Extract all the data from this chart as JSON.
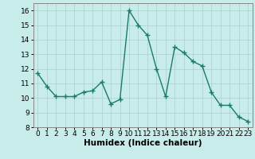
{
  "x": [
    0,
    1,
    2,
    3,
    4,
    5,
    6,
    7,
    8,
    9,
    10,
    11,
    12,
    13,
    14,
    15,
    16,
    17,
    18,
    19,
    20,
    21,
    22,
    23
  ],
  "y": [
    11.7,
    10.8,
    10.1,
    10.1,
    10.1,
    10.4,
    10.5,
    11.1,
    9.6,
    9.9,
    16.0,
    15.0,
    14.3,
    12.0,
    10.1,
    13.5,
    13.1,
    12.5,
    12.2,
    10.4,
    9.5,
    9.5,
    8.7,
    8.4
  ],
  "line_color": "#1a7a6e",
  "marker": "+",
  "marker_size": 4,
  "marker_lw": 1.0,
  "bg_color": "#c8ecea",
  "grid_color": "#aed4d0",
  "xlabel": "Humidex (Indice chaleur)",
  "ylim": [
    8,
    16.5
  ],
  "xlim": [
    -0.5,
    23.5
  ],
  "yticks": [
    8,
    9,
    10,
    11,
    12,
    13,
    14,
    15,
    16
  ],
  "xticks": [
    0,
    1,
    2,
    3,
    4,
    5,
    6,
    7,
    8,
    9,
    10,
    11,
    12,
    13,
    14,
    15,
    16,
    17,
    18,
    19,
    20,
    21,
    22,
    23
  ],
  "xlabel_fontsize": 7.5,
  "tick_fontsize": 6.5,
  "line_width": 1.0,
  "spine_color": "#888888"
}
